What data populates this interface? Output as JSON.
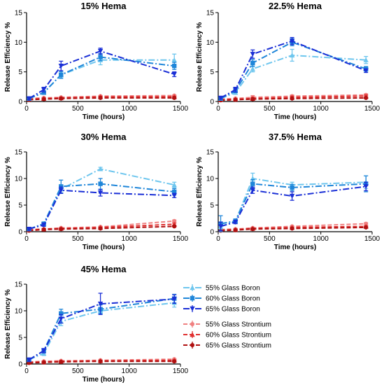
{
  "legend": [
    "55% Glass Boron",
    "60% Glass Boron",
    "65% Glass Boron",
    "55% Glass Strontium",
    "60% Glass Strontium",
    "65% Glass Strontium"
  ],
  "colors": {
    "55% Glass Boron": "#6ec6ee",
    "60% Glass Boron": "#1f86d9",
    "65% Glass Boron": "#1a2fd6",
    "55% Glass Strontium": "#f08080",
    "60% Glass Strontium": "#e03030",
    "65% Glass Strontium": "#b01010"
  },
  "chart_data": [
    {
      "type": "line",
      "title": "15% Hema",
      "xlabel": "Time (hours)",
      "ylabel": "Release Efficiency %",
      "xlim": [
        0,
        1500
      ],
      "ylim": [
        0,
        15
      ],
      "xticks": [
        0,
        500,
        1000,
        1500
      ],
      "yticks": [
        0,
        5,
        10,
        15
      ],
      "x": [
        24,
        168,
        336,
        720,
        1440
      ],
      "series": [
        {
          "name": "55% Glass Boron",
          "values": [
            0.5,
            1.5,
            4.5,
            7.0,
            7.0
          ],
          "err": [
            0.2,
            0.3,
            0.5,
            0.8,
            1.0
          ]
        },
        {
          "name": "60% Glass Boron",
          "values": [
            0.5,
            1.5,
            4.5,
            7.5,
            6.0
          ],
          "err": [
            0.2,
            0.3,
            0.6,
            0.6,
            0.6
          ]
        },
        {
          "name": "65% Glass Boron",
          "values": [
            0.5,
            2.0,
            6.0,
            8.5,
            4.6
          ],
          "err": [
            0.2,
            0.4,
            0.8,
            0.5,
            0.4
          ]
        },
        {
          "name": "55% Glass Strontium",
          "values": [
            0.5,
            0.6,
            0.7,
            0.9,
            1.0
          ],
          "err": [
            0.1,
            0.1,
            0.1,
            0.1,
            0.1
          ]
        },
        {
          "name": "60% Glass Strontium",
          "values": [
            0.4,
            0.5,
            0.6,
            0.8,
            0.8
          ],
          "err": [
            0.1,
            0.1,
            0.1,
            0.1,
            0.1
          ]
        },
        {
          "name": "65% Glass Strontium",
          "values": [
            0.3,
            0.4,
            0.5,
            0.6,
            0.6
          ],
          "err": [
            0.1,
            0.1,
            0.1,
            0.1,
            0.1
          ]
        }
      ]
    },
    {
      "type": "line",
      "title": "22.5% Hema",
      "xlabel": "Time (hours)",
      "ylabel": "Release Efficiency %",
      "xlim": [
        0,
        1500
      ],
      "ylim": [
        0,
        15
      ],
      "xticks": [
        0,
        500,
        1000,
        1500
      ],
      "yticks": [
        0,
        5,
        10,
        15
      ],
      "x": [
        24,
        168,
        336,
        720,
        1440
      ],
      "series": [
        {
          "name": "55% Glass Boron",
          "values": [
            0.5,
            1.5,
            5.5,
            7.8,
            7.0
          ],
          "err": [
            0.2,
            0.3,
            0.5,
            1.0,
            0.6
          ]
        },
        {
          "name": "60% Glass Boron",
          "values": [
            0.5,
            1.8,
            6.5,
            10.0,
            5.5
          ],
          "err": [
            0.2,
            0.3,
            0.6,
            0.6,
            0.4
          ]
        },
        {
          "name": "65% Glass Boron",
          "values": [
            0.6,
            2.0,
            8.0,
            10.2,
            5.2
          ],
          "err": [
            0.2,
            0.4,
            0.7,
            0.6,
            0.3
          ]
        },
        {
          "name": "55% Glass Strontium",
          "values": [
            0.4,
            0.5,
            0.7,
            0.9,
            1.1
          ],
          "err": [
            0.1,
            0.1,
            0.3,
            0.2,
            0.2
          ]
        },
        {
          "name": "60% Glass Strontium",
          "values": [
            0.3,
            0.4,
            0.5,
            0.7,
            0.9
          ],
          "err": [
            0.1,
            0.1,
            0.2,
            0.2,
            0.2
          ]
        },
        {
          "name": "65% Glass Strontium",
          "values": [
            0.2,
            0.3,
            0.4,
            0.5,
            0.6
          ],
          "err": [
            0.1,
            0.1,
            0.1,
            0.1,
            0.1
          ]
        }
      ]
    },
    {
      "type": "line",
      "title": "30% Hema",
      "xlabel": "Time (hours)",
      "ylabel": "Release Efficiency %",
      "xlim": [
        0,
        1500
      ],
      "ylim": [
        0,
        15
      ],
      "xticks": [
        0,
        500,
        1000,
        1500
      ],
      "yticks": [
        0,
        5,
        10,
        15
      ],
      "x": [
        24,
        168,
        336,
        720,
        1440
      ],
      "series": [
        {
          "name": "55% Glass Boron",
          "values": [
            0.5,
            1.5,
            8.0,
            11.8,
            8.8
          ],
          "err": [
            0.2,
            0.3,
            0.8,
            0.3,
            0.5
          ]
        },
        {
          "name": "60% Glass Boron",
          "values": [
            0.5,
            1.5,
            8.5,
            9.0,
            7.5
          ],
          "err": [
            0.2,
            0.3,
            1.2,
            1.0,
            0.6
          ]
        },
        {
          "name": "65% Glass Boron",
          "values": [
            0.5,
            1.3,
            7.8,
            7.3,
            6.8
          ],
          "err": [
            0.2,
            0.3,
            0.6,
            0.6,
            0.4
          ]
        },
        {
          "name": "55% Glass Strontium",
          "values": [
            0.4,
            0.5,
            0.7,
            0.9,
            2.0
          ],
          "err": [
            0.1,
            0.1,
            0.1,
            0.1,
            0.2
          ]
        },
        {
          "name": "60% Glass Strontium",
          "values": [
            0.3,
            0.5,
            0.6,
            0.8,
            1.4
          ],
          "err": [
            0.1,
            0.1,
            0.1,
            0.1,
            0.2
          ]
        },
        {
          "name": "65% Glass Strontium",
          "values": [
            0.2,
            0.4,
            0.5,
            0.6,
            1.0
          ],
          "err": [
            0.1,
            0.1,
            0.1,
            0.1,
            0.1
          ]
        }
      ]
    },
    {
      "type": "line",
      "title": "37.5% Hema",
      "xlabel": "Time (hours)",
      "ylabel": "Release Efficiency %",
      "xlim": [
        0,
        1500
      ],
      "ylim": [
        0,
        15
      ],
      "xticks": [
        0,
        500,
        1000,
        1500
      ],
      "yticks": [
        0,
        5,
        10,
        15
      ],
      "x": [
        24,
        168,
        336,
        720,
        1440
      ],
      "series": [
        {
          "name": "55% Glass Boron",
          "values": [
            1.0,
            2.0,
            10.0,
            8.8,
            9.3
          ],
          "err": [
            0.5,
            0.4,
            1.0,
            0.5,
            1.2
          ]
        },
        {
          "name": "60% Glass Boron",
          "values": [
            1.5,
            2.0,
            9.0,
            8.3,
            9.0
          ],
          "err": [
            1.5,
            0.4,
            0.8,
            0.6,
            1.5
          ]
        },
        {
          "name": "65% Glass Boron",
          "values": [
            1.0,
            1.8,
            7.8,
            6.7,
            8.5
          ],
          "err": [
            0.8,
            0.3,
            0.6,
            0.8,
            0.8
          ]
        },
        {
          "name": "55% Glass Strontium",
          "values": [
            0.4,
            0.5,
            0.7,
            1.0,
            1.5
          ],
          "err": [
            0.1,
            0.1,
            0.1,
            0.1,
            0.2
          ]
        },
        {
          "name": "60% Glass Strontium",
          "values": [
            0.3,
            0.4,
            0.6,
            0.8,
            1.0
          ],
          "err": [
            0.1,
            0.1,
            0.1,
            0.1,
            0.1
          ]
        },
        {
          "name": "65% Glass Strontium",
          "values": [
            0.2,
            0.3,
            0.5,
            0.6,
            0.8
          ],
          "err": [
            0.1,
            0.1,
            0.1,
            0.1,
            0.1
          ]
        }
      ]
    },
    {
      "type": "line",
      "title": "45% Hema",
      "xlabel": "Time (hours)",
      "ylabel": "Release Efficiency %",
      "xlim": [
        0,
        1500
      ],
      "ylim": [
        0,
        15
      ],
      "xticks": [
        0,
        500,
        1000,
        1500
      ],
      "yticks": [
        0,
        5,
        10,
        15
      ],
      "x": [
        24,
        168,
        336,
        720,
        1440
      ],
      "series": [
        {
          "name": "55% Glass Boron",
          "values": [
            0.8,
            2.0,
            8.0,
            10.0,
            11.5
          ],
          "err": [
            0.3,
            0.4,
            0.8,
            0.6,
            0.8
          ]
        },
        {
          "name": "60% Glass Boron",
          "values": [
            0.8,
            2.5,
            9.5,
            10.3,
            12.3
          ],
          "err": [
            0.3,
            0.4,
            0.8,
            0.8,
            0.8
          ]
        },
        {
          "name": "65% Glass Boron",
          "values": [
            0.8,
            2.5,
            8.5,
            11.3,
            12.2
          ],
          "err": [
            0.3,
            0.4,
            0.8,
            2.0,
            0.8
          ]
        },
        {
          "name": "55% Glass Strontium",
          "values": [
            0.4,
            0.5,
            0.6,
            0.7,
            0.9
          ],
          "err": [
            0.1,
            0.1,
            0.1,
            0.1,
            0.1
          ]
        },
        {
          "name": "60% Glass Strontium",
          "values": [
            0.3,
            0.4,
            0.5,
            0.6,
            0.7
          ],
          "err": [
            0.1,
            0.1,
            0.1,
            0.1,
            0.1
          ]
        },
        {
          "name": "65% Glass Strontium",
          "values": [
            0.2,
            0.3,
            0.4,
            0.5,
            0.5
          ],
          "err": [
            0.1,
            0.1,
            0.1,
            0.1,
            0.1
          ]
        }
      ]
    }
  ]
}
